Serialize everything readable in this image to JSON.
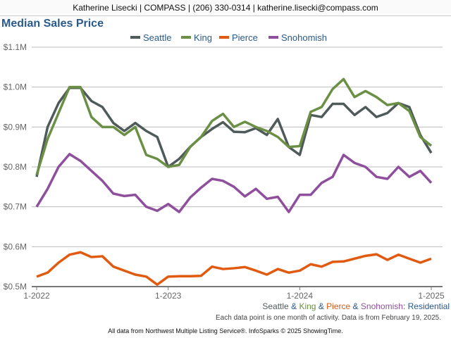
{
  "header": "Katherine Lisecki | COMPASS | (206) 330-0314 | katherine.lisecki@compass.com",
  "chart_data": {
    "type": "line",
    "title": "Median Sales Price",
    "ylabel": "",
    "xlabel": "",
    "ylim": [
      0.5,
      1.1
    ],
    "yticks": [
      0.5,
      0.6,
      0.7,
      0.8,
      0.9,
      1.0,
      1.1
    ],
    "ytick_labels": [
      "$0.5M",
      "$0.6M",
      "$0.7M",
      "$0.8M",
      "$0.9M",
      "$1.0M",
      "$1.1M"
    ],
    "xtick_labels": [
      "1-2022",
      "1-2023",
      "1-2024",
      "1-2025"
    ],
    "x_months": 37,
    "legend_position": "top-center",
    "grid": true,
    "series": [
      {
        "name": "Seattle",
        "color": "#4f5a5a",
        "values": [
          0.775,
          0.9,
          0.96,
          0.998,
          0.998,
          0.965,
          0.95,
          0.91,
          0.89,
          0.91,
          0.89,
          0.875,
          0.8,
          0.82,
          0.85,
          0.875,
          0.895,
          0.912,
          0.888,
          0.887,
          0.897,
          0.88,
          0.92,
          0.85,
          0.83,
          0.93,
          0.925,
          0.958,
          0.958,
          0.93,
          0.95,
          0.925,
          0.935,
          0.96,
          0.95,
          0.88,
          0.835
        ]
      },
      {
        "name": "King",
        "color": "#6a8f45",
        "values": [
          0.78,
          0.87,
          0.935,
          1.0,
          1.0,
          0.925,
          0.9,
          0.9,
          0.88,
          0.9,
          0.83,
          0.82,
          0.8,
          0.805,
          0.85,
          0.875,
          0.915,
          0.933,
          0.9,
          0.913,
          0.9,
          0.89,
          0.875,
          0.85,
          0.852,
          0.938,
          0.95,
          0.995,
          1.02,
          0.975,
          0.99,
          0.975,
          0.955,
          0.96,
          0.94,
          0.875,
          0.853
        ]
      },
      {
        "name": "Pierce",
        "color": "#e05a10",
        "values": [
          0.525,
          0.535,
          0.56,
          0.58,
          0.586,
          0.574,
          0.576,
          0.55,
          0.54,
          0.53,
          0.525,
          0.505,
          0.525,
          0.526,
          0.526,
          0.527,
          0.55,
          0.544,
          0.546,
          0.549,
          0.54,
          0.53,
          0.544,
          0.535,
          0.54,
          0.556,
          0.55,
          0.562,
          0.563,
          0.57,
          0.577,
          0.581,
          0.567,
          0.58,
          0.57,
          0.56,
          0.57
        ]
      },
      {
        "name": "Snohomish",
        "color": "#8e4f9c",
        "values": [
          0.7,
          0.745,
          0.8,
          0.832,
          0.815,
          0.79,
          0.765,
          0.733,
          0.727,
          0.73,
          0.7,
          0.69,
          0.707,
          0.687,
          0.723,
          0.748,
          0.77,
          0.765,
          0.75,
          0.726,
          0.745,
          0.72,
          0.725,
          0.687,
          0.73,
          0.73,
          0.76,
          0.775,
          0.83,
          0.81,
          0.8,
          0.775,
          0.77,
          0.8,
          0.775,
          0.79,
          0.76
        ]
      }
    ]
  },
  "footer": {
    "areas": [
      "Seattle",
      "King",
      "Pierce",
      "Snohomish"
    ],
    "amp": "&",
    "colon": ":",
    "type": "Residential",
    "note": "Each data point is one month of activity. Data is from February 19, 2025.",
    "source": "All data from Northwest Multiple Listing Service®. InfoSparks © 2025 ShowingTime."
  }
}
